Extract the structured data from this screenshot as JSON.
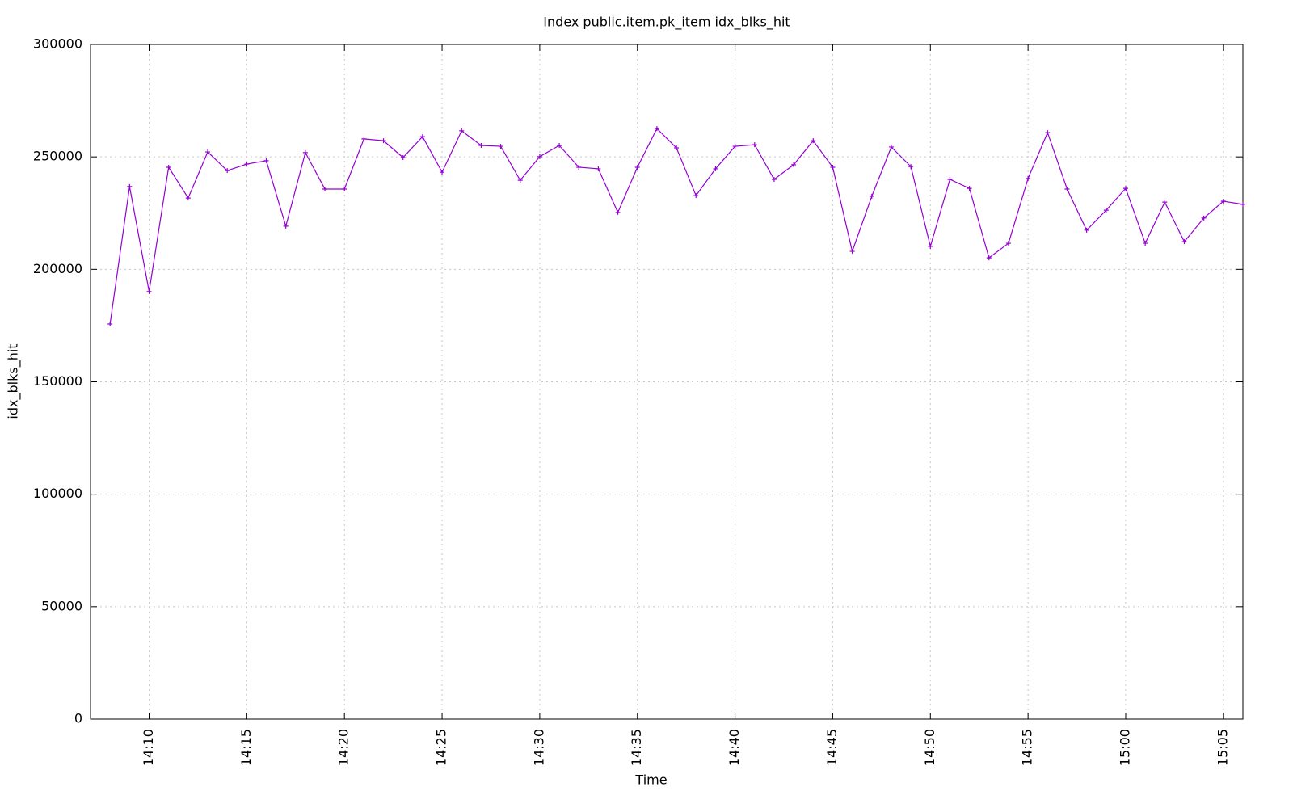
{
  "chart_data": {
    "type": "line",
    "title": "Index public.item.pk_item idx_blks_hit",
    "x_label": "Time",
    "y_label": "idx_blks_hit",
    "x": [
      "14:08",
      "14:09",
      "14:10",
      "14:11",
      "14:12",
      "14:13",
      "14:14",
      "14:15",
      "14:16",
      "14:17",
      "14:18",
      "14:19",
      "14:20",
      "14:21",
      "14:22",
      "14:23",
      "14:24",
      "14:25",
      "14:26",
      "14:27",
      "14:28",
      "14:29",
      "14:30",
      "14:31",
      "14:32",
      "14:33",
      "14:34",
      "14:35",
      "14:36",
      "14:37",
      "14:38",
      "14:39",
      "14:40",
      "14:41",
      "14:42",
      "14:43",
      "14:44",
      "14:45",
      "14:46",
      "14:47",
      "14:48",
      "14:49",
      "14:50",
      "14:51",
      "14:52",
      "14:53",
      "14:54",
      "14:55",
      "14:56",
      "14:57",
      "14:58",
      "14:59",
      "15:00",
      "15:01",
      "15:02",
      "15:03",
      "15:04",
      "15:05",
      "15:06"
    ],
    "series": [
      {
        "name": "idx_blks_hit",
        "color": "#9400d3",
        "values": [
          175700,
          236800,
          190100,
          245400,
          231700,
          252200,
          243900,
          246800,
          248300,
          219200,
          251900,
          235700,
          235700,
          258000,
          257200,
          249700,
          259000,
          243200,
          261600,
          255100,
          254700,
          239600,
          250100,
          255100,
          245400,
          244700,
          225300,
          245400,
          262600,
          254000,
          232800,
          244700,
          254700,
          255400,
          240000,
          246500,
          257200,
          245400,
          208000,
          232500,
          254400,
          245700,
          210200,
          240000,
          236000,
          205100,
          211600,
          240400,
          260800,
          235700,
          217400,
          226300,
          236000,
          211600,
          229900,
          212300,
          222800,
          230300,
          228900
        ]
      }
    ],
    "xlim": [
      "14:07",
      "15:06"
    ],
    "xticks": [
      "14:10",
      "14:15",
      "14:20",
      "14:25",
      "14:30",
      "14:35",
      "14:40",
      "14:45",
      "14:50",
      "14:55",
      "15:00",
      "15:05"
    ],
    "ylim": [
      0,
      300000
    ],
    "yticks": [
      0,
      50000,
      100000,
      150000,
      200000,
      250000,
      300000
    ],
    "grid": true
  }
}
